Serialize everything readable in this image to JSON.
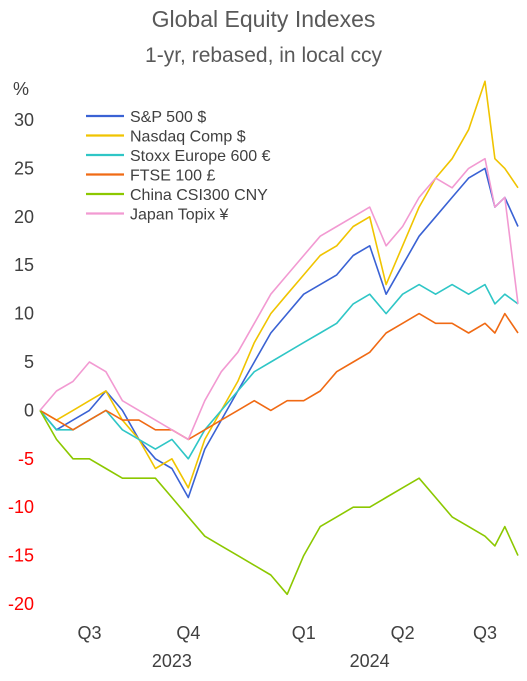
{
  "chart_data": {
    "type": "line",
    "title": "Global Equity Indexes",
    "subtitle": "1-yr, rebased, in local ccy",
    "ylabel": "%",
    "xlabel": "",
    "ylim": [
      -20,
      30
    ],
    "yticks": [
      30,
      25,
      20,
      15,
      10,
      5,
      0,
      -5,
      -10,
      -15,
      -20
    ],
    "negative_tick_color": "#ff0000",
    "positive_tick_color": "#404040",
    "x_quarter_labels": [
      "Q3",
      "Q4",
      "Q1",
      "Q2",
      "Q3"
    ],
    "x_quarter_positions": [
      6,
      9,
      12.5,
      15.5,
      18
    ],
    "x_year_labels": [
      "2023",
      "2024"
    ],
    "x_year_positions": [
      8.5,
      14.5
    ],
    "xlim": [
      4.5,
      19
    ],
    "grid": false,
    "legend_position": "top-left",
    "series": [
      {
        "name": "S&P 500 $",
        "color": "#3a62d4",
        "x": [
          4.5,
          5.0,
          5.5,
          6.0,
          6.5,
          7.0,
          7.5,
          8.0,
          8.5,
          9.0,
          9.5,
          10.0,
          10.5,
          11.0,
          11.5,
          12.0,
          12.5,
          13.0,
          13.5,
          14.0,
          14.5,
          15.0,
          15.5,
          16.0,
          16.5,
          17.0,
          17.5,
          18.0,
          18.3,
          18.6,
          19.0
        ],
        "values": [
          0,
          -2,
          -1,
          0,
          2,
          0,
          -3,
          -5,
          -6,
          -9,
          -4,
          -1,
          2,
          5,
          8,
          10,
          12,
          13,
          14,
          16,
          17,
          12,
          15,
          18,
          20,
          22,
          24,
          25,
          21,
          22,
          19
        ]
      },
      {
        "name": "Nasdaq Comp $",
        "color": "#f0c400",
        "x": [
          4.5,
          5.0,
          5.5,
          6.0,
          6.5,
          7.0,
          7.5,
          8.0,
          8.5,
          9.0,
          9.5,
          10.0,
          10.5,
          11.0,
          11.5,
          12.0,
          12.5,
          13.0,
          13.5,
          14.0,
          14.5,
          15.0,
          15.5,
          16.0,
          16.5,
          17.0,
          17.5,
          18.0,
          18.3,
          18.6,
          19.0
        ],
        "values": [
          0,
          -1,
          0,
          1,
          2,
          -1,
          -3,
          -6,
          -5,
          -8,
          -3,
          0,
          3,
          7,
          10,
          12,
          14,
          16,
          17,
          19,
          20,
          13,
          17,
          21,
          24,
          26,
          29,
          34,
          26,
          25,
          23
        ]
      },
      {
        "name": "Stoxx Europe 600 €",
        "color": "#2fc6c6",
        "x": [
          4.5,
          5.0,
          5.5,
          6.0,
          6.5,
          7.0,
          7.5,
          8.0,
          8.5,
          9.0,
          9.5,
          10.0,
          10.5,
          11.0,
          11.5,
          12.0,
          12.5,
          13.0,
          13.5,
          14.0,
          14.5,
          15.0,
          15.5,
          16.0,
          16.5,
          17.0,
          17.5,
          18.0,
          18.3,
          18.6,
          19.0
        ],
        "values": [
          0,
          -2,
          -2,
          -1,
          0,
          -2,
          -3,
          -4,
          -3,
          -5,
          -2,
          0,
          2,
          4,
          5,
          6,
          7,
          8,
          9,
          11,
          12,
          10,
          12,
          13,
          12,
          13,
          12,
          13,
          11,
          12,
          11
        ]
      },
      {
        "name": "FTSE 100 £",
        "color": "#f06a14",
        "x": [
          4.5,
          5.0,
          5.5,
          6.0,
          6.5,
          7.0,
          7.5,
          8.0,
          8.5,
          9.0,
          9.5,
          10.0,
          10.5,
          11.0,
          11.5,
          12.0,
          12.5,
          13.0,
          13.5,
          14.0,
          14.5,
          15.0,
          15.5,
          16.0,
          16.5,
          17.0,
          17.5,
          18.0,
          18.3,
          18.6,
          19.0
        ],
        "values": [
          0,
          -1,
          -2,
          -1,
          0,
          -1,
          -1,
          -2,
          -2,
          -3,
          -2,
          -1,
          0,
          1,
          0,
          1,
          1,
          2,
          4,
          5,
          6,
          8,
          9,
          10,
          9,
          9,
          8,
          9,
          8,
          10,
          8
        ]
      },
      {
        "name": "China CSI300 CNY",
        "color": "#8cc800",
        "x": [
          4.5,
          5.0,
          5.5,
          6.0,
          6.5,
          7.0,
          7.5,
          8.0,
          8.5,
          9.0,
          9.5,
          10.0,
          10.5,
          11.0,
          11.5,
          12.0,
          12.5,
          13.0,
          13.5,
          14.0,
          14.5,
          15.0,
          15.5,
          16.0,
          16.5,
          17.0,
          17.5,
          18.0,
          18.3,
          18.6,
          19.0
        ],
        "values": [
          0,
          -3,
          -5,
          -5,
          -6,
          -7,
          -7,
          -7,
          -9,
          -11,
          -13,
          -14,
          -15,
          -16,
          -17,
          -19,
          -15,
          -12,
          -11,
          -10,
          -10,
          -9,
          -8,
          -7,
          -9,
          -11,
          -12,
          -13,
          -14,
          -12,
          -15
        ]
      },
      {
        "name": "Japan Topix ¥",
        "color": "#f29ad2",
        "x": [
          4.5,
          5.0,
          5.5,
          6.0,
          6.5,
          7.0,
          7.5,
          8.0,
          8.5,
          9.0,
          9.5,
          10.0,
          10.5,
          11.0,
          11.5,
          12.0,
          12.5,
          13.0,
          13.5,
          14.0,
          14.5,
          15.0,
          15.5,
          16.0,
          16.5,
          17.0,
          17.5,
          18.0,
          18.3,
          18.6,
          19.0
        ],
        "values": [
          0,
          2,
          3,
          5,
          4,
          1,
          0,
          -1,
          -2,
          -3,
          1,
          4,
          6,
          9,
          12,
          14,
          16,
          18,
          19,
          20,
          21,
          17,
          19,
          22,
          24,
          23,
          25,
          26,
          21,
          22,
          11
        ]
      }
    ]
  }
}
